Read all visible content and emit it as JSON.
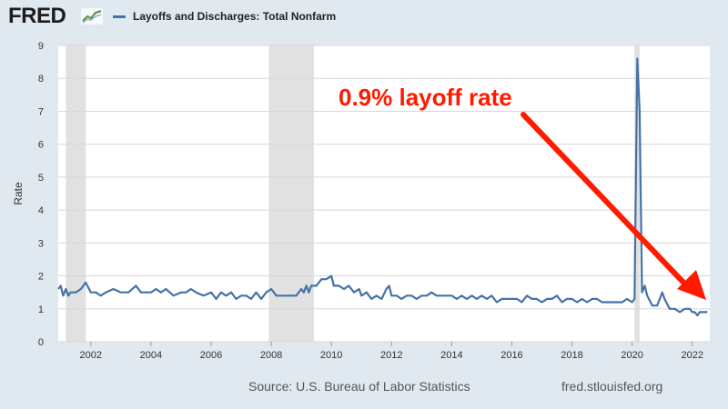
{
  "header": {
    "logo_text": "FRED",
    "series_label": "Layoffs and Discharges: Total Nonfarm",
    "series_color": "#4572a7"
  },
  "footer": {
    "source": "Source: U.S. Bureau of Labor Statistics",
    "site": "fred.stlouisfed.org"
  },
  "annotation": {
    "text": "0.9% layoff rate",
    "color": "#ff1a00"
  },
  "chart_data": {
    "type": "line",
    "title": "Layoffs and Discharges: Total Nonfarm",
    "xlabel": "",
    "ylabel": "Rate",
    "xlim": [
      2000.917,
      2022.583
    ],
    "ylim": [
      0,
      9
    ],
    "y_ticks": [
      0,
      1,
      2,
      3,
      4,
      5,
      6,
      7,
      8,
      9
    ],
    "x_ticks": [
      2002,
      2004,
      2006,
      2008,
      2010,
      2012,
      2014,
      2016,
      2018,
      2020,
      2022
    ],
    "grid": "horizontal",
    "recessions": [
      [
        2001.17,
        2001.83
      ],
      [
        2007.92,
        2009.42
      ],
      [
        2020.08,
        2020.25
      ]
    ],
    "series": [
      {
        "name": "Layoffs and Discharges: Total Nonfarm",
        "color": "#4572a7",
        "points": [
          [
            2000.92,
            1.6
          ],
          [
            2001.0,
            1.7
          ],
          [
            2001.08,
            1.4
          ],
          [
            2001.17,
            1.6
          ],
          [
            2001.25,
            1.4
          ],
          [
            2001.33,
            1.5
          ],
          [
            2001.5,
            1.5
          ],
          [
            2001.67,
            1.6
          ],
          [
            2001.83,
            1.8
          ],
          [
            2002.0,
            1.5
          ],
          [
            2002.17,
            1.5
          ],
          [
            2002.33,
            1.4
          ],
          [
            2002.5,
            1.5
          ],
          [
            2002.75,
            1.6
          ],
          [
            2003.0,
            1.5
          ],
          [
            2003.25,
            1.5
          ],
          [
            2003.5,
            1.7
          ],
          [
            2003.67,
            1.5
          ],
          [
            2004.0,
            1.5
          ],
          [
            2004.17,
            1.6
          ],
          [
            2004.33,
            1.5
          ],
          [
            2004.5,
            1.6
          ],
          [
            2004.75,
            1.4
          ],
          [
            2005.0,
            1.5
          ],
          [
            2005.17,
            1.5
          ],
          [
            2005.33,
            1.6
          ],
          [
            2005.5,
            1.5
          ],
          [
            2005.75,
            1.4
          ],
          [
            2006.0,
            1.5
          ],
          [
            2006.17,
            1.3
          ],
          [
            2006.33,
            1.5
          ],
          [
            2006.5,
            1.4
          ],
          [
            2006.67,
            1.5
          ],
          [
            2006.83,
            1.3
          ],
          [
            2007.0,
            1.4
          ],
          [
            2007.17,
            1.4
          ],
          [
            2007.33,
            1.3
          ],
          [
            2007.5,
            1.5
          ],
          [
            2007.67,
            1.3
          ],
          [
            2007.83,
            1.5
          ],
          [
            2008.0,
            1.6
          ],
          [
            2008.17,
            1.4
          ],
          [
            2008.5,
            1.4
          ],
          [
            2008.83,
            1.4
          ],
          [
            2009.0,
            1.6
          ],
          [
            2009.08,
            1.5
          ],
          [
            2009.17,
            1.7
          ],
          [
            2009.25,
            1.5
          ],
          [
            2009.33,
            1.7
          ],
          [
            2009.5,
            1.7
          ],
          [
            2009.67,
            1.9
          ],
          [
            2009.83,
            1.9
          ],
          [
            2010.0,
            2.0
          ],
          [
            2010.08,
            1.7
          ],
          [
            2010.25,
            1.7
          ],
          [
            2010.42,
            1.6
          ],
          [
            2010.58,
            1.7
          ],
          [
            2010.75,
            1.5
          ],
          [
            2010.92,
            1.6
          ],
          [
            2011.0,
            1.4
          ],
          [
            2011.17,
            1.5
          ],
          [
            2011.33,
            1.3
          ],
          [
            2011.5,
            1.4
          ],
          [
            2011.67,
            1.3
          ],
          [
            2011.83,
            1.6
          ],
          [
            2011.92,
            1.7
          ],
          [
            2012.0,
            1.4
          ],
          [
            2012.17,
            1.4
          ],
          [
            2012.33,
            1.3
          ],
          [
            2012.5,
            1.4
          ],
          [
            2012.67,
            1.4
          ],
          [
            2012.83,
            1.3
          ],
          [
            2013.0,
            1.4
          ],
          [
            2013.17,
            1.4
          ],
          [
            2013.33,
            1.5
          ],
          [
            2013.5,
            1.4
          ],
          [
            2014.0,
            1.4
          ],
          [
            2014.17,
            1.3
          ],
          [
            2014.33,
            1.4
          ],
          [
            2014.5,
            1.3
          ],
          [
            2014.67,
            1.4
          ],
          [
            2014.83,
            1.3
          ],
          [
            2015.0,
            1.4
          ],
          [
            2015.17,
            1.3
          ],
          [
            2015.33,
            1.4
          ],
          [
            2015.5,
            1.2
          ],
          [
            2015.67,
            1.3
          ],
          [
            2016.0,
            1.3
          ],
          [
            2016.17,
            1.3
          ],
          [
            2016.33,
            1.2
          ],
          [
            2016.5,
            1.4
          ],
          [
            2016.67,
            1.3
          ],
          [
            2016.83,
            1.3
          ],
          [
            2017.0,
            1.2
          ],
          [
            2017.17,
            1.3
          ],
          [
            2017.33,
            1.3
          ],
          [
            2017.5,
            1.4
          ],
          [
            2017.67,
            1.2
          ],
          [
            2017.83,
            1.3
          ],
          [
            2018.0,
            1.3
          ],
          [
            2018.17,
            1.2
          ],
          [
            2018.33,
            1.3
          ],
          [
            2018.5,
            1.2
          ],
          [
            2018.67,
            1.3
          ],
          [
            2018.83,
            1.3
          ],
          [
            2019.0,
            1.2
          ],
          [
            2019.17,
            1.2
          ],
          [
            2019.33,
            1.2
          ],
          [
            2019.5,
            1.2
          ],
          [
            2019.67,
            1.2
          ],
          [
            2019.83,
            1.3
          ],
          [
            2020.0,
            1.2
          ],
          [
            2020.08,
            1.3
          ],
          [
            2020.17,
            8.6
          ],
          [
            2020.25,
            7.0
          ],
          [
            2020.33,
            1.5
          ],
          [
            2020.42,
            1.7
          ],
          [
            2020.5,
            1.4
          ],
          [
            2020.67,
            1.1
          ],
          [
            2020.83,
            1.1
          ],
          [
            2020.92,
            1.3
          ],
          [
            2021.0,
            1.5
          ],
          [
            2021.08,
            1.3
          ],
          [
            2021.25,
            1.0
          ],
          [
            2021.42,
            1.0
          ],
          [
            2021.58,
            0.9
          ],
          [
            2021.75,
            1.0
          ],
          [
            2021.92,
            1.0
          ],
          [
            2022.0,
            0.9
          ],
          [
            2022.08,
            0.9
          ],
          [
            2022.17,
            0.8
          ],
          [
            2022.25,
            0.9
          ],
          [
            2022.42,
            0.9
          ],
          [
            2022.5,
            0.9
          ]
        ]
      }
    ],
    "annotations": [
      {
        "text": "0.9% layoff rate",
        "points_to": [
          2022.5,
          0.9
        ]
      }
    ]
  }
}
